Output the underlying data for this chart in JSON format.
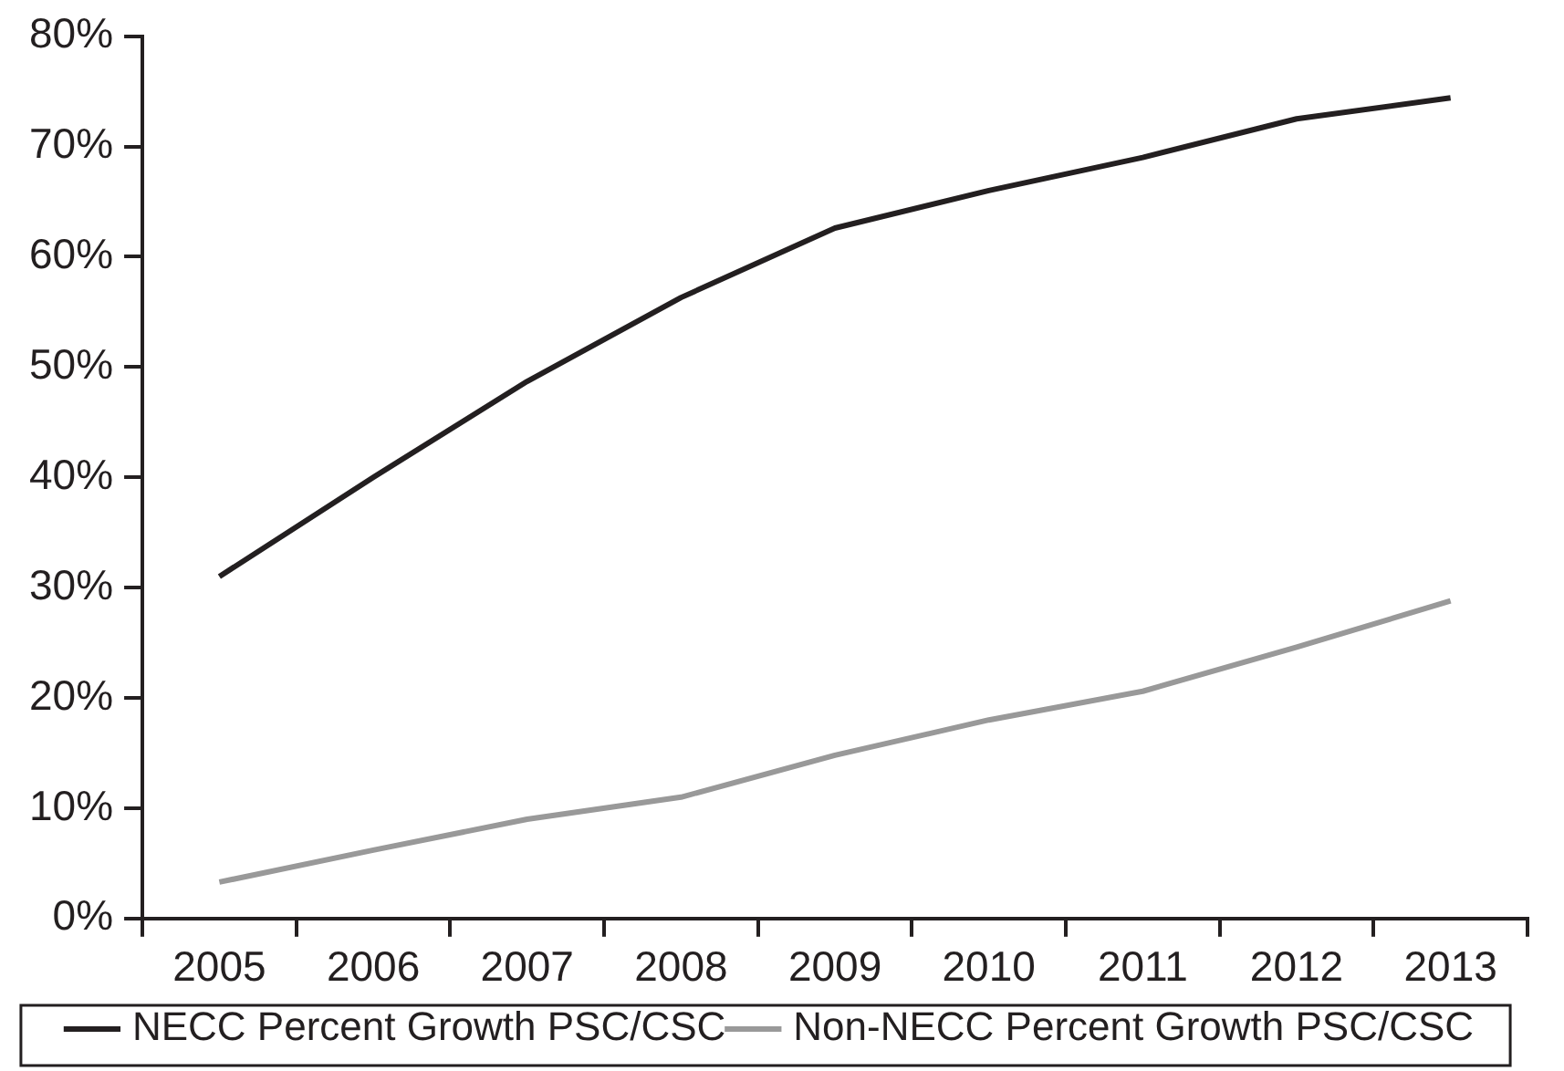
{
  "chart_data": {
    "type": "line",
    "categories": [
      "2005",
      "2006",
      "2007",
      "2008",
      "2009",
      "2010",
      "2011",
      "2012",
      "2013"
    ],
    "series": [
      {
        "name": "NECC Percent Growth PSC/CSC",
        "color": "#231f20",
        "values": [
          31,
          40,
          48.7,
          56.3,
          62.6,
          66,
          69,
          72.5,
          74.4
        ]
      },
      {
        "name": "Non-NECC Percent Growth PSC/CSC",
        "color": "#999999",
        "values": [
          3.3,
          6.2,
          9,
          11,
          14.8,
          18,
          20.6,
          24.6,
          28.8
        ]
      }
    ],
    "ylim": [
      0,
      80
    ],
    "yticks": [
      {
        "value": 0,
        "label": "0%"
      },
      {
        "value": 10,
        "label": "10%"
      },
      {
        "value": 20,
        "label": "20%"
      },
      {
        "value": 30,
        "label": "30%"
      },
      {
        "value": 40,
        "label": "40%"
      },
      {
        "value": 50,
        "label": "50%"
      },
      {
        "value": 60,
        "label": "60%"
      },
      {
        "value": 70,
        "label": "70%"
      },
      {
        "value": 80,
        "label": "80%"
      }
    ],
    "grid": false,
    "legend": "bottom",
    "marker": "none",
    "line_style": "solid"
  }
}
